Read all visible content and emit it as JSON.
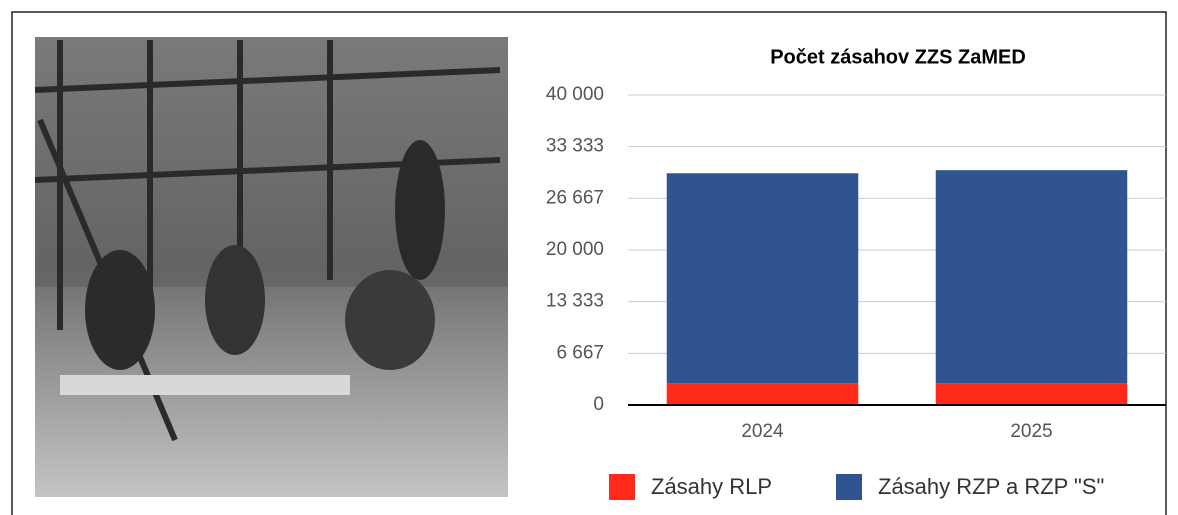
{
  "chart_data": {
    "type": "stacked_bar",
    "title": "Počet zásahov ZZS ZaMED",
    "categories": [
      "2024",
      "2025"
    ],
    "series": [
      {
        "name": "Zásahy RLP",
        "color": "#ff2a1a",
        "values": [
          2800,
          2800
        ]
      },
      {
        "name": "Zásahy RZP a RZP \"S\"",
        "color": "#2f548f",
        "values": [
          27100,
          27500
        ]
      }
    ],
    "ylim": [
      0,
      40000
    ],
    "yticks": [
      0,
      {
        "value": 6666.67,
        "label": "6 667"
      },
      {
        "value": 13333.33,
        "label": "13 333"
      },
      {
        "value": 20000,
        "label": "20 000"
      },
      {
        "value": 26666.67,
        "label": "26 667"
      },
      {
        "value": 33333.33,
        "label": "33 333"
      },
      {
        "value": 40000,
        "label": "40 000"
      }
    ],
    "grid": true
  }
}
